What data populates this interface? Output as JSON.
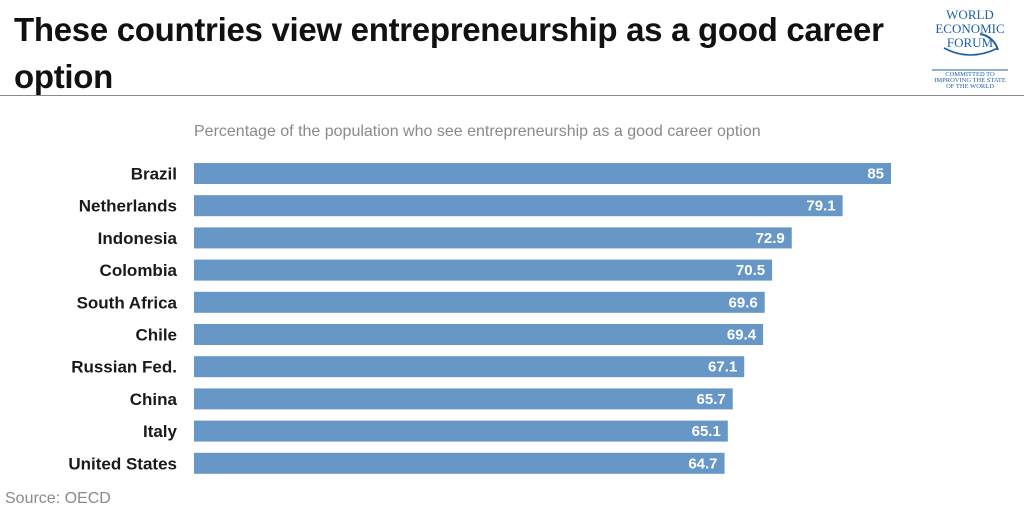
{
  "header": {
    "title": "These countries view entrepreneurship as a good career option"
  },
  "logo": {
    "line1": "WORLD",
    "line2": "ECONOMIC",
    "line3": "FORUM",
    "tagline1": "COMMITTED TO",
    "tagline2": "IMPROVING THE STATE",
    "tagline3": "OF THE WORLD",
    "color": "#1d5fa6"
  },
  "chart_data": {
    "type": "bar",
    "orientation": "horizontal",
    "title": "Percentage of the population who see entrepreneurship as a good career option",
    "categories": [
      "Brazil",
      "Netherlands",
      "Indonesia",
      "Colombia",
      "South Africa",
      "Chile",
      "Russian Fed.",
      "China",
      "Italy",
      "United States"
    ],
    "values": [
      85,
      79.1,
      72.9,
      70.5,
      69.6,
      69.4,
      67.1,
      65.7,
      65.1,
      64.7
    ],
    "value_labels": [
      "85",
      "79.1",
      "72.9",
      "70.5",
      "69.6",
      "69.4",
      "67.1",
      "65.7",
      "65.1",
      "64.7"
    ],
    "xlim": [
      0,
      85
    ],
    "grid": false,
    "bar_color": "#6697c6"
  },
  "footer": {
    "source": "Source: OECD"
  }
}
